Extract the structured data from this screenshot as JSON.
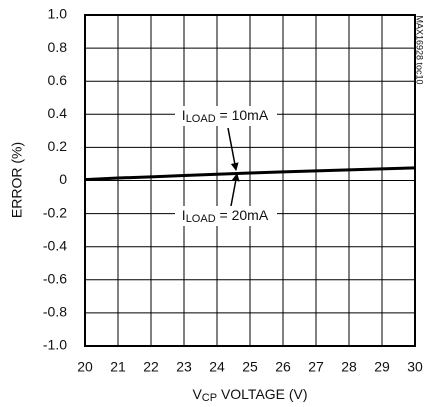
{
  "chart_data": {
    "type": "line",
    "xlabel": {
      "main": "V",
      "sub": "CP",
      "rest": " VOLTAGE (V)"
    },
    "ylabel": "ERROR (%)",
    "side_note": "MAX16928 toc10",
    "x": [
      20,
      21,
      22,
      23,
      24,
      25,
      26,
      27,
      28,
      29,
      30
    ],
    "series": [
      {
        "color": "#000000",
        "values": [
          0.005,
          0.015,
          0.022,
          0.03,
          0.038,
          0.045,
          0.052,
          0.058,
          0.064,
          0.07,
          0.076
        ]
      }
    ],
    "xlim": [
      20,
      30
    ],
    "xticks": [
      20,
      21,
      22,
      23,
      24,
      25,
      26,
      27,
      28,
      29,
      30
    ],
    "ylim": [
      -1,
      1
    ],
    "yticks": [
      {
        "value": -1,
        "label": "-1.0"
      },
      -0.8,
      -0.6,
      -0.4,
      -0.2,
      0,
      0.2,
      0.4,
      0.6,
      0.8,
      {
        "value": 1,
        "label": "1.0"
      }
    ],
    "grid": true,
    "annotations": [
      {
        "main": "I",
        "sub": "LOAD",
        "rest": " = 10mA"
      },
      {
        "main": "I",
        "sub": "LOAD",
        "rest": " = 20mA"
      }
    ]
  }
}
